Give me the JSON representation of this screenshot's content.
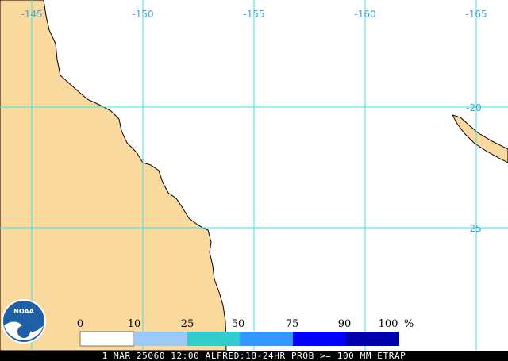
{
  "map": {
    "longitude_labels": [
      "-145",
      "-150",
      "-155",
      "-160",
      "-165"
    ],
    "latitude_labels": [
      "-20",
      "-25"
    ]
  },
  "legend": {
    "labels": [
      "0",
      "10",
      "25",
      "50",
      "75",
      "90",
      "100"
    ],
    "unit": "%"
  },
  "logo": {
    "text": "NOAA"
  },
  "caption": "1 MAR 25060 12:00 ALFRED:18-24HR PROB >= 100 MM ETRAP"
}
